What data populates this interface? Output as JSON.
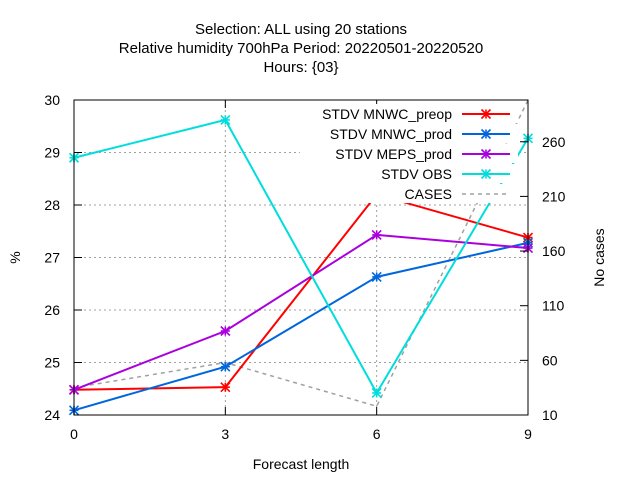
{
  "chart_data": {
    "type": "line",
    "title_lines": [
      "Selection: ALL using    20 stations",
      "Relative humidity 700hPa   Period: 20220501-20220520",
      "Hours: {03}"
    ],
    "xlabel": "Forecast length",
    "ylabel": "%",
    "y2label": "No cases",
    "x": [
      0,
      3,
      6,
      9
    ],
    "xlim": [
      0,
      9
    ],
    "ylim": [
      24,
      30
    ],
    "y2lim": [
      10,
      298.2
    ],
    "xticks": [
      "0",
      "3",
      "6",
      "9"
    ],
    "yticks": [
      "24",
      "25",
      "26",
      "27",
      "28",
      "29",
      "30"
    ],
    "y2ticks": [
      "10",
      "60",
      "110",
      "160",
      "210",
      "260"
    ],
    "y2tick_values": [
      10,
      60,
      110,
      160,
      210,
      260
    ],
    "grid": true,
    "legend_position": "top-right",
    "series": [
      {
        "name": "STDV MNWC_preop",
        "axis": "y",
        "color": "#ff0000",
        "dash": "",
        "marker": "x",
        "values": [
          24.48,
          24.53,
          28.2,
          27.38
        ]
      },
      {
        "name": "STDV MNWC_prod",
        "axis": "y",
        "color": "#0066dd",
        "dash": "",
        "marker": "x",
        "values": [
          24.09,
          24.92,
          26.63,
          27.28
        ]
      },
      {
        "name": "STDV MEPS_prod",
        "axis": "y",
        "color": "#aa00dd",
        "dash": "",
        "marker": "x",
        "values": [
          24.48,
          25.6,
          27.43,
          27.18
        ]
      },
      {
        "name": "STDV OBS",
        "axis": "y",
        "color": "#00dddd",
        "dash": "",
        "marker": "x",
        "values": [
          28.9,
          29.62,
          24.42,
          29.27
        ]
      },
      {
        "name": "CASES",
        "axis": "y2",
        "color": "#a0a0a0",
        "dash": "4,4",
        "marker": "",
        "values": [
          35,
          58,
          18,
          298
        ]
      }
    ]
  }
}
